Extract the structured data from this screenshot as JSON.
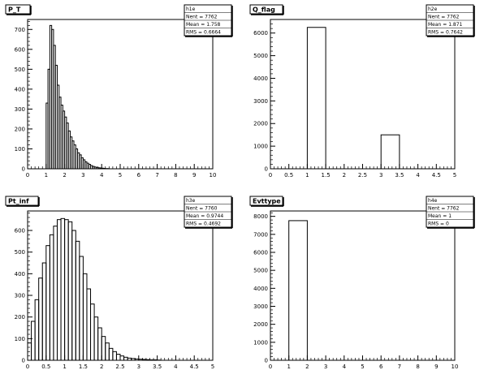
{
  "chart_data": [
    {
      "type": "bar",
      "title": "P_T",
      "stats": {
        "name": "h1e",
        "entries": "Nent = 7762",
        "mean": "Mean = 1.758",
        "rms": "RMS = 0.6664"
      },
      "xlim": [
        0,
        10
      ],
      "ylim": [
        0,
        750
      ],
      "xticks": [
        0,
        1,
        2,
        3,
        4,
        5,
        6,
        7,
        8,
        9,
        10
      ],
      "yticks": [
        0,
        100,
        200,
        300,
        400,
        500,
        600,
        700
      ],
      "bin_width": 0.1,
      "x_start": 0.8,
      "values": [
        0,
        0,
        330,
        500,
        720,
        700,
        620,
        520,
        420,
        360,
        320,
        290,
        260,
        230,
        190,
        160,
        140,
        120,
        100,
        80,
        70,
        55,
        45,
        35,
        28,
        22,
        16,
        12,
        9,
        7,
        5,
        4,
        3,
        2,
        1,
        1
      ]
    },
    {
      "type": "bar",
      "title": "Q_flag",
      "stats": {
        "name": "h2e",
        "entries": "Nent = 7762",
        "mean": "Mean = 1.871",
        "rms": "RMS = 0.7642"
      },
      "xlim": [
        0,
        5
      ],
      "ylim": [
        0,
        6600
      ],
      "xticks": [
        0,
        0.5,
        1,
        1.5,
        2,
        2.5,
        3,
        3.5,
        4,
        4.5,
        5
      ],
      "yticks": [
        0,
        1000,
        2000,
        3000,
        4000,
        5000,
        6000
      ],
      "bin_width": 0.5,
      "x_start": 1.0,
      "values": [
        6250,
        0,
        0,
        0,
        1500
      ]
    },
    {
      "type": "bar",
      "title": "Pt_inf",
      "stats": {
        "name": "h3e",
        "entries": "Nent = 7760",
        "mean": "Mean = 0.9744",
        "rms": "RMS = 0.4692"
      },
      "xlim": [
        0,
        5
      ],
      "ylim": [
        0,
        690
      ],
      "xticks": [
        0,
        0.5,
        1,
        1.5,
        2,
        2.5,
        3,
        3.5,
        4,
        4.5,
        5
      ],
      "yticks": [
        0,
        100,
        200,
        300,
        400,
        500,
        600
      ],
      "bin_width": 0.1,
      "x_start": 0.0,
      "values": [
        80,
        180,
        280,
        380,
        450,
        530,
        580,
        620,
        650,
        655,
        650,
        640,
        600,
        550,
        480,
        400,
        330,
        260,
        200,
        150,
        110,
        80,
        55,
        40,
        28,
        20,
        14,
        10,
        8,
        6,
        5,
        4,
        3,
        2,
        2,
        1
      ]
    },
    {
      "type": "bar",
      "title": "Evttype",
      "stats": {
        "name": "h4e",
        "entries": "Nent = 7762",
        "mean": "Mean = 1",
        "rms": "RMS = 0"
      },
      "xlim": [
        0,
        10
      ],
      "ylim": [
        0,
        8300
      ],
      "xticks": [
        0,
        1,
        2,
        3,
        4,
        5,
        6,
        7,
        8,
        9,
        10
      ],
      "yticks": [
        0,
        1000,
        2000,
        3000,
        4000,
        5000,
        6000,
        7000,
        8000
      ],
      "bin_width": 1,
      "x_start": 1,
      "values": [
        7762
      ]
    }
  ]
}
